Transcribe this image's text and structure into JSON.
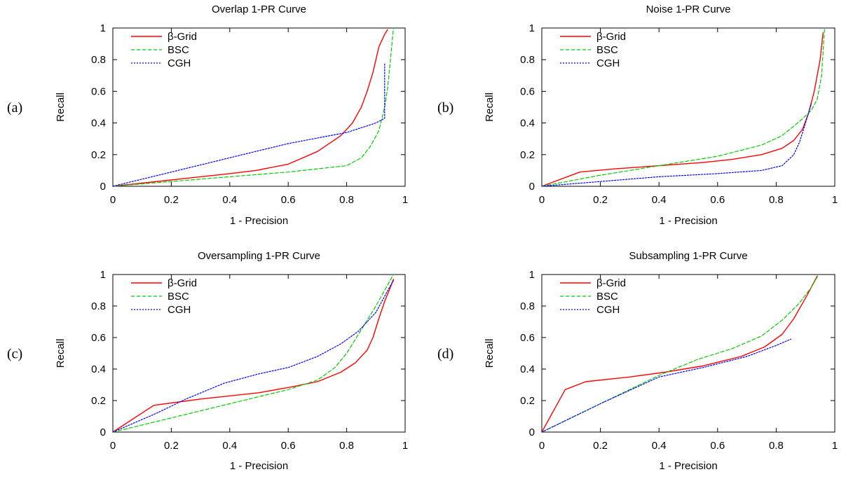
{
  "chart_data": [
    {
      "type": "line",
      "panel_label": "(a)",
      "title": "Overlap 1-PR Curve",
      "xlabel": "1 - Precision",
      "ylabel": "Recall",
      "xlim": [
        0,
        1
      ],
      "ylim": [
        0,
        1
      ],
      "xticks": [
        "0",
        "0.2",
        "0.4",
        "0.6",
        "0.8",
        "1"
      ],
      "yticks": [
        "0",
        "0.2",
        "0.4",
        "0.6",
        "0.8",
        "1"
      ],
      "grid": false,
      "legend_position": "top-left",
      "series": [
        {
          "name": "β-Grid",
          "color": "#ff0000",
          "dash": "solid",
          "x": [
            0,
            0.1,
            0.2,
            0.3,
            0.4,
            0.49,
            0.6,
            0.7,
            0.78,
            0.82,
            0.85,
            0.87,
            0.89,
            0.9,
            0.91,
            0.93,
            0.94
          ],
          "y": [
            0,
            0.02,
            0.04,
            0.06,
            0.08,
            0.1,
            0.14,
            0.22,
            0.32,
            0.4,
            0.5,
            0.6,
            0.72,
            0.8,
            0.88,
            0.96,
            0.99
          ]
        },
        {
          "name": "BSC",
          "color": "#00cc00",
          "dash": "dashed",
          "x": [
            0,
            0.2,
            0.4,
            0.6,
            0.7,
            0.8,
            0.85,
            0.88,
            0.91,
            0.93,
            0.94,
            0.95,
            0.96
          ],
          "y": [
            0,
            0.03,
            0.06,
            0.09,
            0.11,
            0.13,
            0.18,
            0.25,
            0.35,
            0.5,
            0.62,
            0.8,
            1.0
          ]
        },
        {
          "name": "CGH",
          "color": "#0000ff",
          "dash": "dotted",
          "x": [
            0,
            0.2,
            0.4,
            0.6,
            0.8,
            0.9,
            0.93,
            0.93
          ],
          "y": [
            0,
            0.09,
            0.18,
            0.27,
            0.34,
            0.4,
            0.43,
            0.78
          ]
        }
      ]
    },
    {
      "type": "line",
      "panel_label": "(b)",
      "title": "Noise 1-PR Curve",
      "xlabel": "1 - Precision",
      "ylabel": "Recall",
      "xlim": [
        0,
        1
      ],
      "ylim": [
        0,
        1
      ],
      "xticks": [
        "0",
        "0.2",
        "0.4",
        "0.6",
        "0.8",
        "1"
      ],
      "yticks": [
        "0",
        "0.2",
        "0.4",
        "0.6",
        "0.8",
        "1"
      ],
      "grid": false,
      "legend_position": "top-left",
      "series": [
        {
          "name": "β-Grid",
          "color": "#ff0000",
          "dash": "solid",
          "x": [
            0,
            0.13,
            0.25,
            0.4,
            0.55,
            0.65,
            0.75,
            0.82,
            0.86,
            0.89,
            0.91,
            0.93,
            0.95,
            0.96
          ],
          "y": [
            0,
            0.09,
            0.11,
            0.13,
            0.15,
            0.17,
            0.2,
            0.24,
            0.29,
            0.36,
            0.46,
            0.6,
            0.8,
            0.97
          ]
        },
        {
          "name": "BSC",
          "color": "#00cc00",
          "dash": "dashed",
          "x": [
            0,
            0.2,
            0.4,
            0.6,
            0.75,
            0.82,
            0.88,
            0.92,
            0.94,
            0.955,
            0.965
          ],
          "y": [
            0,
            0.07,
            0.13,
            0.19,
            0.26,
            0.32,
            0.41,
            0.48,
            0.55,
            0.7,
            1.0
          ]
        },
        {
          "name": "CGH",
          "color": "#0000ff",
          "dash": "dotted",
          "x": [
            0,
            0.2,
            0.4,
            0.6,
            0.75,
            0.82,
            0.86,
            0.88,
            0.9,
            0.92
          ],
          "y": [
            0,
            0.03,
            0.06,
            0.08,
            0.1,
            0.13,
            0.2,
            0.28,
            0.4,
            0.52
          ]
        }
      ]
    },
    {
      "type": "line",
      "panel_label": "(c)",
      "title": "Oversampling 1-PR Curve",
      "xlabel": "1 - Precision",
      "ylabel": "Recall",
      "xlim": [
        0,
        1
      ],
      "ylim": [
        0,
        1
      ],
      "xticks": [
        "0",
        "0.2",
        "0.4",
        "0.6",
        "0.8",
        "1"
      ],
      "yticks": [
        "0",
        "0.2",
        "0.4",
        "0.6",
        "0.8",
        "1"
      ],
      "grid": false,
      "legend_position": "top-left",
      "series": [
        {
          "name": "β-Grid",
          "color": "#ff0000",
          "dash": "solid",
          "x": [
            0,
            0.14,
            0.3,
            0.5,
            0.62,
            0.7,
            0.78,
            0.83,
            0.87,
            0.89,
            0.91,
            0.93,
            0.95,
            0.96
          ],
          "y": [
            0,
            0.17,
            0.21,
            0.25,
            0.29,
            0.32,
            0.38,
            0.44,
            0.52,
            0.6,
            0.72,
            0.83,
            0.92,
            0.97
          ]
        },
        {
          "name": "BSC",
          "color": "#00cc00",
          "dash": "dashed",
          "x": [
            0,
            0.2,
            0.4,
            0.6,
            0.7,
            0.76,
            0.8,
            0.85,
            0.9,
            0.93,
            0.96
          ],
          "y": [
            0,
            0.09,
            0.18,
            0.27,
            0.33,
            0.41,
            0.5,
            0.65,
            0.8,
            0.9,
            1.0
          ]
        },
        {
          "name": "CGH",
          "color": "#0000ff",
          "dash": "dotted",
          "x": [
            0,
            0.15,
            0.25,
            0.38,
            0.5,
            0.6,
            0.7,
            0.78,
            0.84,
            0.9,
            0.95,
            0.96
          ],
          "y": [
            0,
            0.12,
            0.21,
            0.31,
            0.37,
            0.41,
            0.48,
            0.56,
            0.64,
            0.76,
            0.93,
            0.96
          ]
        }
      ]
    },
    {
      "type": "line",
      "panel_label": "(d)",
      "title": "Subsampling 1-PR Curve",
      "xlabel": "1 - Precision",
      "ylabel": "Recall",
      "xlim": [
        0,
        1
      ],
      "ylim": [
        0,
        1
      ],
      "xticks": [
        "0",
        "0.2",
        "0.4",
        "0.6",
        "0.8",
        "1"
      ],
      "yticks": [
        "0",
        "0.2",
        "0.4",
        "0.6",
        "0.8",
        "1"
      ],
      "grid": false,
      "legend_position": "top-left",
      "series": [
        {
          "name": "β-Grid",
          "color": "#ff0000",
          "dash": "solid",
          "x": [
            0,
            0.08,
            0.15,
            0.3,
            0.42,
            0.55,
            0.68,
            0.76,
            0.82,
            0.86,
            0.9,
            0.94
          ],
          "y": [
            0,
            0.27,
            0.32,
            0.35,
            0.38,
            0.42,
            0.48,
            0.54,
            0.62,
            0.72,
            0.85,
            0.99
          ]
        },
        {
          "name": "BSC",
          "color": "#00cc00",
          "dash": "dashed",
          "x": [
            0,
            0.2,
            0.4,
            0.53,
            0.65,
            0.75,
            0.82,
            0.88,
            0.92,
            0.945
          ],
          "y": [
            0,
            0.18,
            0.36,
            0.46,
            0.53,
            0.61,
            0.71,
            0.82,
            0.92,
            1.0
          ]
        },
        {
          "name": "CGH",
          "color": "#0000ff",
          "dash": "dotted",
          "x": [
            0,
            0.2,
            0.4,
            0.55,
            0.7,
            0.8,
            0.85
          ],
          "y": [
            0,
            0.18,
            0.35,
            0.41,
            0.48,
            0.55,
            0.59
          ]
        }
      ]
    }
  ]
}
